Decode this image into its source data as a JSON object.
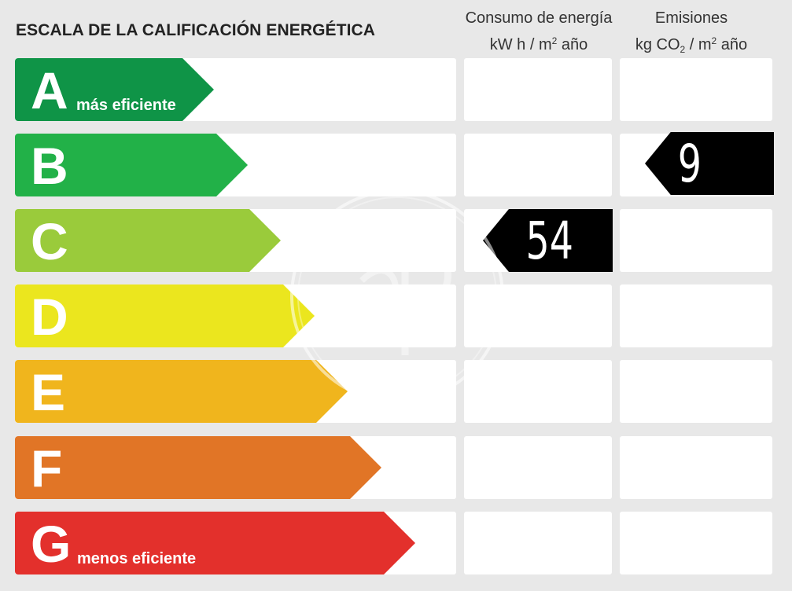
{
  "title": "ESCALA DE LA CALIFICACIÓN ENERGÉTICA",
  "columns": {
    "energy": {
      "line1": "Consumo de energía",
      "unit_main": "kW h  / m",
      "unit_sup": "2",
      "unit_end": " año"
    },
    "emissions": {
      "line1": "Emisiones",
      "unit_main": "kg CO",
      "unit_sub": "2",
      "unit_mid": "  / m",
      "unit_sup": "2",
      "unit_end": " año"
    }
  },
  "ratings": [
    {
      "letter": "A",
      "sublabel": "más eficiente",
      "color": "#0f9447"
    },
    {
      "letter": "B",
      "sublabel": "",
      "color": "#22b148"
    },
    {
      "letter": "C",
      "sublabel": "",
      "color": "#9acb3b"
    },
    {
      "letter": "D",
      "sublabel": "",
      "color": "#ebe61e"
    },
    {
      "letter": "E",
      "sublabel": "",
      "color": "#f0b51d"
    },
    {
      "letter": "F",
      "sublabel": "",
      "color": "#e17526"
    },
    {
      "letter": "G",
      "sublabel": "menos eficiente",
      "color": "#e3302c"
    }
  ],
  "energy_value": {
    "value": "54",
    "rating": "C"
  },
  "emissions_value": {
    "value": "9",
    "rating": "B"
  }
}
